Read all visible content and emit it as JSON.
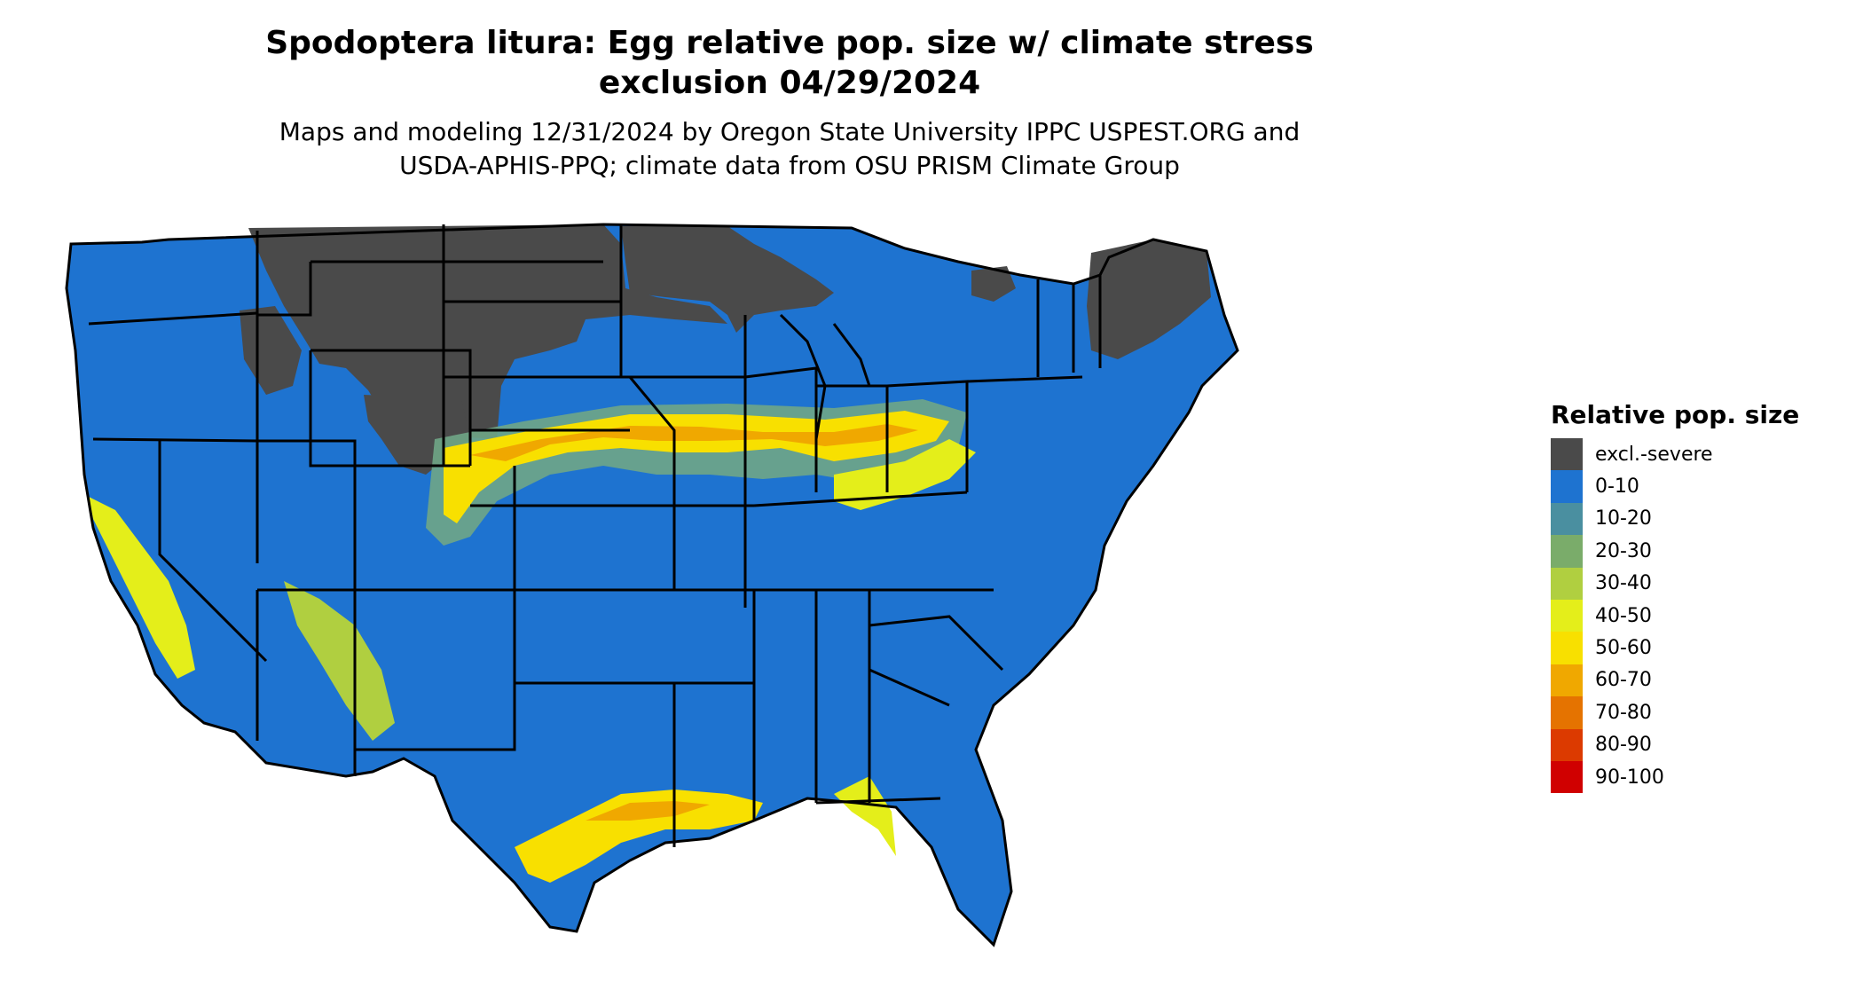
{
  "title": {
    "line1": "Spodoptera litura: Egg relative pop. size w/ climate stress",
    "line2": "exclusion 04/29/2024"
  },
  "subtitle": {
    "line1": "Maps and modeling 12/31/2024 by Oregon State University IPPC USPEST.ORG and",
    "line2": "USDA-APHIS-PPQ; climate data from OSU PRISM Climate Group"
  },
  "colors": {
    "excluded": "#4a4a4a",
    "low": "#1e73d0",
    "border": "#000000",
    "background": "#ffffff"
  },
  "legend": {
    "title": "Relative pop. size",
    "items": [
      {
        "label": "excl.-severe",
        "color": "#4a4a4a"
      },
      {
        "label": "0-10",
        "color": "#1e73d0"
      },
      {
        "label": "10-20",
        "color": "#4a8fa0"
      },
      {
        "label": "20-30",
        "color": "#7aac6a"
      },
      {
        "label": "30-40",
        "color": "#b0cf40"
      },
      {
        "label": "40-50",
        "color": "#e4ee1a"
      },
      {
        "label": "50-60",
        "color": "#f8e000"
      },
      {
        "label": "60-70",
        "color": "#f0a800"
      },
      {
        "label": "70-80",
        "color": "#e57300"
      },
      {
        "label": "80-90",
        "color": "#dc3a00"
      },
      {
        "label": "90-100",
        "color": "#d00000"
      }
    ]
  }
}
